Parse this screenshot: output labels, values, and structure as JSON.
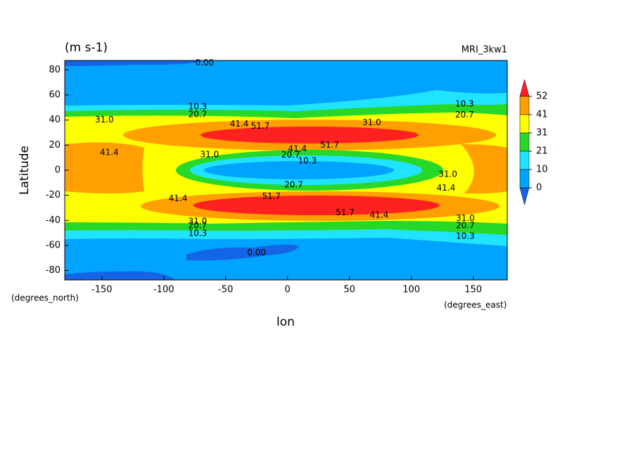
{
  "chart_data": {
    "type": "contour",
    "title": "(m s-1)",
    "model": "MRI_3kw1",
    "xlabel": "lon",
    "ylabel": "Latitude",
    "x_units": "(degrees_east)",
    "y_units": "(degrees_north)",
    "xlim": [
      -180,
      177.5
    ],
    "ylim": [
      -87.5,
      87.5
    ],
    "xticks": [
      -150,
      -100,
      -50,
      0,
      50,
      100,
      150
    ],
    "yticks": [
      -80,
      -60,
      -40,
      -20,
      0,
      20,
      40,
      60,
      80
    ],
    "colorbar": {
      "ticks": [
        52,
        41,
        31,
        21,
        10,
        0
      ],
      "colors": [
        "#ff2020",
        "#ffa000",
        "#ffff00",
        "#28d828",
        "#20e4ff",
        "#00a4ff",
        "#1464e6"
      ]
    },
    "contour_labels": [
      {
        "label": "0.00",
        "lon": -67,
        "lat": 85.5
      },
      {
        "label": "10.3",
        "lon": -72.6,
        "lat": 50.5
      },
      {
        "label": "20.7",
        "lon": -72.6,
        "lat": 44.4
      },
      {
        "label": "31.0",
        "lon": -148,
        "lat": 40
      },
      {
        "label": "41.4",
        "lon": -39,
        "lat": 36.7
      },
      {
        "label": "51.7",
        "lon": -22,
        "lat": 35
      },
      {
        "label": "31.0",
        "lon": 68,
        "lat": 38
      },
      {
        "label": "10.3",
        "lon": 143,
        "lat": 52.8
      },
      {
        "label": "20.7",
        "lon": 143,
        "lat": 44
      },
      {
        "label": "41.4",
        "lon": -144,
        "lat": 13.9
      },
      {
        "label": "31.0",
        "lon": -63,
        "lat": 12.2
      },
      {
        "label": "41.4",
        "lon": 8,
        "lat": 16.7
      },
      {
        "label": "51.7",
        "lon": 34,
        "lat": 20
      },
      {
        "label": "20.7",
        "lon": 2.5,
        "lat": 12
      },
      {
        "label": "10.3",
        "lon": 16,
        "lat": 7.2
      },
      {
        "label": "20.7",
        "lon": 5,
        "lat": -11.7
      },
      {
        "label": "31.0",
        "lon": 129.5,
        "lat": -3.3
      },
      {
        "label": "41.4",
        "lon": 128,
        "lat": -14.4
      },
      {
        "label": "41.4",
        "lon": -88.5,
        "lat": -22.8
      },
      {
        "label": "51.7",
        "lon": -13,
        "lat": -21
      },
      {
        "label": "51.7",
        "lon": 46.5,
        "lat": -34
      },
      {
        "label": "41.4",
        "lon": 74,
        "lat": -36
      },
      {
        "label": "31.0",
        "lon": -72.6,
        "lat": -41
      },
      {
        "label": "20.7",
        "lon": -72.6,
        "lat": -44.4
      },
      {
        "label": "10.3",
        "lon": -72.6,
        "lat": -50.5
      },
      {
        "label": "31.0",
        "lon": 143.6,
        "lat": -38.3
      },
      {
        "label": "20.7",
        "lon": 143.6,
        "lat": -44.4
      },
      {
        "label": "10.3",
        "lon": 143.6,
        "lat": -52.8
      },
      {
        "label": "0.00",
        "lon": -25,
        "lat": -66
      }
    ]
  }
}
